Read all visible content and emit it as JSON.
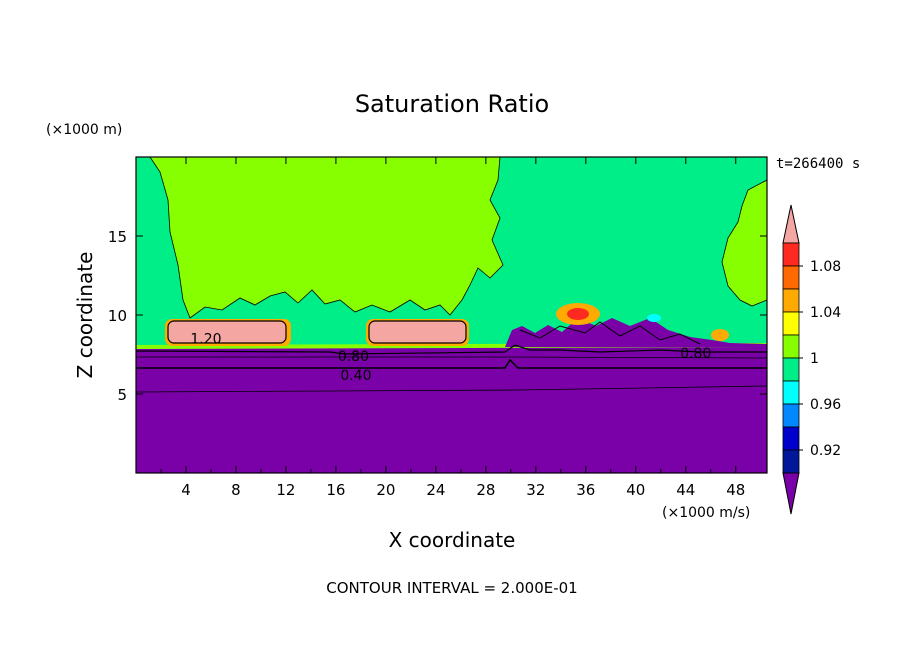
{
  "chart_data": {
    "type": "contour",
    "title": "Saturation Ratio",
    "xlabel": "X coordinate",
    "ylabel": "Z coordinate",
    "x_unit": "(×1000 m/s)",
    "y_unit": "(×1000 m)",
    "time_label": "t=266400 s",
    "footer": "CONTOUR INTERVAL = 2.000E-01",
    "xlim": [
      0,
      50.5
    ],
    "ylim": [
      0,
      20
    ],
    "x_ticks": [
      "4",
      "8",
      "12",
      "16",
      "20",
      "24",
      "28",
      "32",
      "36",
      "40",
      "44",
      "48"
    ],
    "y_ticks": [
      "5",
      "10",
      "15"
    ],
    "contour_labels": [
      {
        "text": "1.20",
        "x": 5.6,
        "z": 8.5
      },
      {
        "text": "0.80",
        "x": 17.4,
        "z": 7.4
      },
      {
        "text": "0.40",
        "x": 17.6,
        "z": 6.2
      },
      {
        "text": "0.80",
        "x": 44.8,
        "z": 7.6
      }
    ],
    "colorbar": {
      "tick_labels": [
        "1.08",
        "1.04",
        "1",
        "0.96",
        "0.92"
      ],
      "levels": [
        {
          "min": 1.1,
          "color": "#f4a6a3"
        },
        {
          "min": 1.08,
          "color": "#ff2a1f"
        },
        {
          "min": 1.06,
          "color": "#ff6a00"
        },
        {
          "min": 1.04,
          "color": "#ffaa00"
        },
        {
          "min": 1.02,
          "color": "#ffff00"
        },
        {
          "min": 1.0,
          "color": "#88ff00"
        },
        {
          "min": 0.98,
          "color": "#00ee88"
        },
        {
          "min": 0.96,
          "color": "#00ffff"
        },
        {
          "min": 0.94,
          "color": "#0088ff"
        },
        {
          "min": 0.92,
          "color": "#0000cc"
        },
        {
          "min": 0.9,
          "color": "#001899"
        },
        {
          "max": 0.9,
          "color": "#7a00a8"
        }
      ]
    }
  }
}
